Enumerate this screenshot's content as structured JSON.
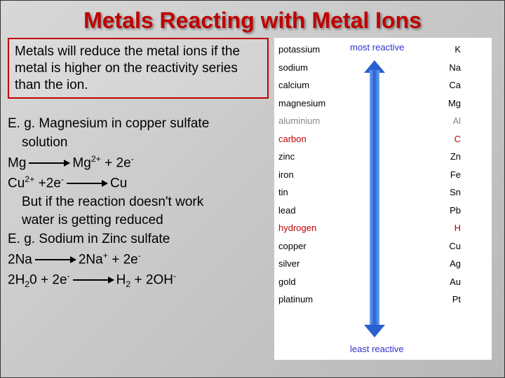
{
  "title": "Metals Reacting with Metal Ions",
  "box_text": "Metals will reduce the metal ions if the metal is higher on the reactivity series than the ion.",
  "example": {
    "line1": "E. g. Magnesium in copper sulfate",
    "line1b": "solution",
    "eq1_left": "Mg",
    "eq1_right_a": "Mg",
    "eq1_right_b": " + 2e",
    "eq2_left_a": "Cu",
    "eq2_left_b": " +2e",
    "eq2_right": "Cu",
    "line3": "But if the reaction doesn't work",
    "line3b": "water is getting reduced",
    "line4": "E. g. Sodium in Zinc sulfate",
    "eq3_left": "2Na",
    "eq3_right_a": "2Na",
    "eq3_right_b": " + 2e",
    "eq4_left_a": "2H",
    "eq4_left_b": "0 + 2e",
    "eq4_right_a": "H",
    "eq4_right_b": " + 2OH"
  },
  "labels": {
    "most": "most reactive",
    "least": "least reactive"
  },
  "series": [
    {
      "name": "potassium",
      "sym": "K",
      "cls": ""
    },
    {
      "name": "sodium",
      "sym": "Na",
      "cls": ""
    },
    {
      "name": "calcium",
      "sym": "Ca",
      "cls": ""
    },
    {
      "name": "magnesium",
      "sym": "Mg",
      "cls": ""
    },
    {
      "name": "aluminium",
      "sym": "Al",
      "cls": "grey"
    },
    {
      "name": "carbon",
      "sym": "C",
      "cls": "red"
    },
    {
      "name": "zinc",
      "sym": "Zn",
      "cls": ""
    },
    {
      "name": "iron",
      "sym": "Fe",
      "cls": ""
    },
    {
      "name": "tin",
      "sym": "Sn",
      "cls": ""
    },
    {
      "name": "lead",
      "sym": "Pb",
      "cls": ""
    },
    {
      "name": "hydrogen",
      "sym": "H",
      "cls": "red"
    },
    {
      "name": "copper",
      "sym": "Cu",
      "cls": ""
    },
    {
      "name": "silver",
      "sym": "Ag",
      "cls": ""
    },
    {
      "name": "gold",
      "sym": "Au",
      "cls": ""
    },
    {
      "name": "platinum",
      "sym": "Pt",
      "cls": ""
    }
  ],
  "colors": {
    "title": "#c00000",
    "box_border": "#c00000",
    "arrow_gradient": [
      "#6aa8f0",
      "#2a5fd0"
    ],
    "label_color": "#3030d0"
  }
}
